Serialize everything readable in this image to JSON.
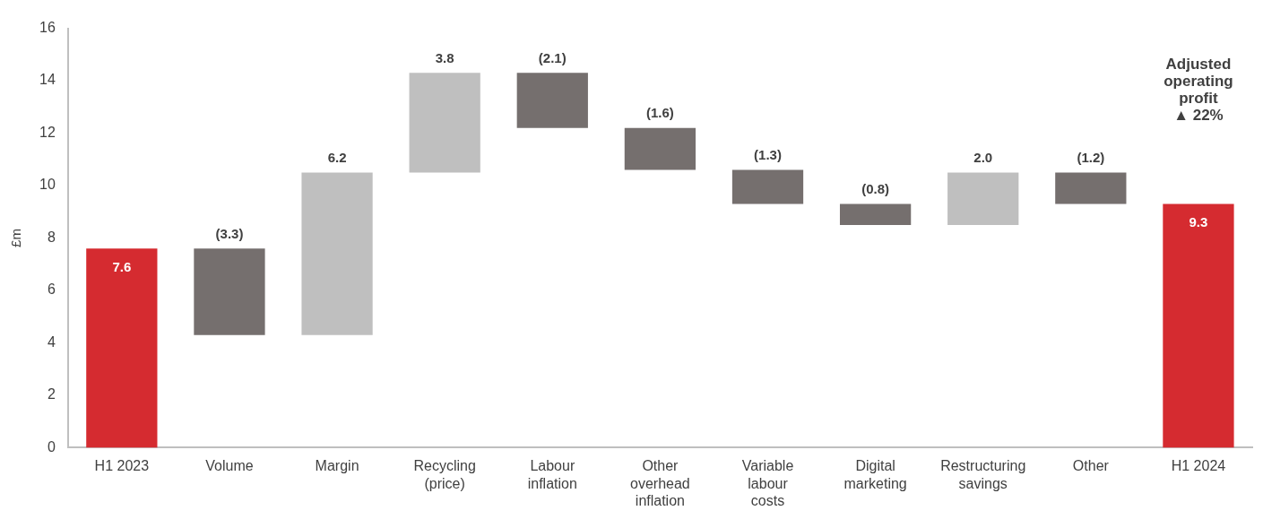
{
  "chart_data": {
    "type": "bar",
    "ylabel": "£m",
    "categories": [
      "H1 2023",
      "Volume",
      "Margin",
      "Recycling (price)",
      "Labour inflation",
      "Other overhead inflation",
      "Variable labour costs",
      "Digital marketing",
      "Restructuring savings",
      "Other",
      "H1 2024"
    ],
    "values": [
      7.6,
      -3.3,
      6.2,
      3.8,
      -2.1,
      -1.6,
      -1.3,
      -0.8,
      2.0,
      -1.2,
      9.3
    ],
    "base": [
      0,
      7.6,
      4.3,
      10.5,
      14.3,
      12.2,
      10.6,
      9.3,
      8.5,
      10.5,
      0
    ],
    "colors": [
      "#d52b30",
      "#756f6e",
      "#bfbfbf",
      "#bfbfbf",
      "#756f6e",
      "#756f6e",
      "#756f6e",
      "#756f6e",
      "#bfbfbf",
      "#756f6e",
      "#d52b30"
    ],
    "value_labels": [
      "7.6",
      "(3.3)",
      "6.2",
      "3.8",
      "(2.1)",
      "(1.6)",
      "(1.3)",
      "(0.8)",
      "2.0",
      "(1.2)",
      "9.3"
    ],
    "ylim": [
      0,
      16
    ],
    "yticks": [
      0,
      2,
      4,
      6,
      8,
      10,
      12,
      14,
      16
    ],
    "grid": false,
    "legend": false,
    "annotations": [
      "Adjusted operating profit ▲ 22%"
    ]
  }
}
